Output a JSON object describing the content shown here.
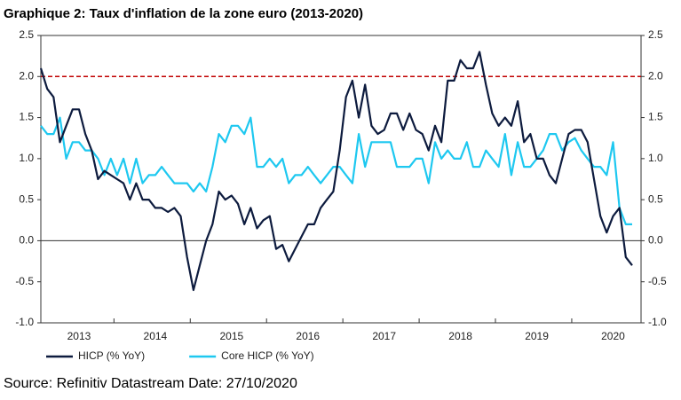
{
  "chart_data": {
    "type": "line",
    "title": "Graphique 2: Taux d'inflation de la zone euro (2013-2020)",
    "source": "Source: Refinitiv Datastream Date: 27/10/2020",
    "categories": [
      null,
      null,
      null,
      null,
      null,
      null,
      "2013",
      null,
      null,
      null,
      null,
      null,
      null,
      null,
      null,
      null,
      null,
      null,
      "2014",
      null,
      null,
      null,
      null,
      null,
      null,
      null,
      null,
      null,
      null,
      null,
      "2015",
      null,
      null,
      null,
      null,
      null,
      null,
      null,
      null,
      null,
      null,
      null,
      "2016",
      null,
      null,
      null,
      null,
      null,
      null,
      null,
      null,
      null,
      null,
      null,
      "2017",
      null,
      null,
      null,
      null,
      null,
      null,
      null,
      null,
      null,
      null,
      null,
      "2018",
      null,
      null,
      null,
      null,
      null,
      null,
      null,
      null,
      null,
      null,
      null,
      "2019",
      null,
      null,
      null,
      null,
      null,
      null,
      null,
      null,
      null,
      null,
      null,
      "2020",
      null,
      null,
      null
    ],
    "series": [
      {
        "name": "HICP (% YoY)",
        "color": "#0d1b3e",
        "values": [
          2.1,
          1.85,
          1.75,
          1.2,
          1.4,
          1.6,
          1.6,
          1.3,
          1.1,
          0.75,
          0.85,
          0.8,
          0.75,
          0.7,
          0.5,
          0.7,
          0.5,
          0.5,
          0.4,
          0.4,
          0.35,
          0.4,
          0.3,
          -0.2,
          -0.6,
          -0.3,
          0.0,
          0.2,
          0.6,
          0.5,
          0.55,
          0.45,
          0.2,
          0.4,
          0.15,
          0.25,
          0.3,
          -0.1,
          -0.05,
          -0.25,
          -0.1,
          0.05,
          0.2,
          0.2,
          0.4,
          0.5,
          0.6,
          1.1,
          1.75,
          1.95,
          1.5,
          1.9,
          1.4,
          1.3,
          1.35,
          1.55,
          1.55,
          1.35,
          1.55,
          1.35,
          1.3,
          1.1,
          1.4,
          1.2,
          1.95,
          1.95,
          2.2,
          2.1,
          2.1,
          2.3,
          1.9,
          1.55,
          1.4,
          1.5,
          1.4,
          1.7,
          1.2,
          1.3,
          1.0,
          1.0,
          0.8,
          0.7,
          1.0,
          1.3,
          1.35,
          1.35,
          1.2,
          0.75,
          0.3,
          0.1,
          0.3,
          0.4,
          -0.2,
          -0.3
        ]
      },
      {
        "name": "Core HICP (% YoY)",
        "color": "#1ec8f0",
        "values": [
          1.4,
          1.3,
          1.3,
          1.5,
          1.0,
          1.2,
          1.2,
          1.1,
          1.1,
          1.0,
          0.8,
          1.0,
          0.8,
          1.0,
          0.7,
          1.0,
          0.7,
          0.8,
          0.8,
          0.9,
          0.8,
          0.7,
          0.7,
          0.7,
          0.6,
          0.7,
          0.6,
          0.9,
          1.3,
          1.2,
          1.4,
          1.4,
          1.3,
          1.5,
          0.9,
          0.9,
          1.0,
          0.9,
          1.0,
          0.7,
          0.8,
          0.8,
          0.9,
          0.8,
          0.7,
          0.8,
          0.9,
          0.9,
          0.8,
          0.7,
          1.3,
          0.9,
          1.2,
          1.2,
          1.2,
          1.2,
          0.9,
          0.9,
          0.9,
          1.0,
          1.0,
          0.7,
          1.2,
          1.0,
          1.1,
          1.0,
          1.0,
          1.2,
          0.9,
          0.9,
          1.1,
          1.0,
          0.9,
          1.3,
          0.8,
          1.2,
          0.9,
          0.9,
          1.0,
          1.1,
          1.3,
          1.3,
          1.1,
          1.2,
          1.25,
          1.1,
          1.0,
          0.9,
          0.9,
          0.8,
          1.2,
          0.4,
          0.2,
          0.2
        ]
      }
    ],
    "hline": {
      "value": 2.0,
      "color": "#c00000"
    },
    "ylim": [
      -1.0,
      2.5
    ],
    "yticks": [
      {
        "value": -1.0,
        "label": "-1.0"
      },
      -0.5,
      {
        "value": 0.0,
        "label": "0.0"
      },
      0.5,
      {
        "value": 1.0,
        "label": "1.0"
      },
      1.5,
      {
        "value": 2.0,
        "label": "2.0"
      },
      2.5
    ],
    "y2lim": [
      -1.0,
      2.5
    ],
    "y2ticks": [
      {
        "value": -1.0,
        "label": "-1.0"
      },
      -0.5,
      {
        "value": 0.0,
        "label": "0.0"
      },
      0.5,
      {
        "value": 1.0,
        "label": "1.0"
      },
      1.5,
      {
        "value": 2.0,
        "label": "2.0"
      },
      2.5
    ],
    "legend": "bottom-left"
  }
}
